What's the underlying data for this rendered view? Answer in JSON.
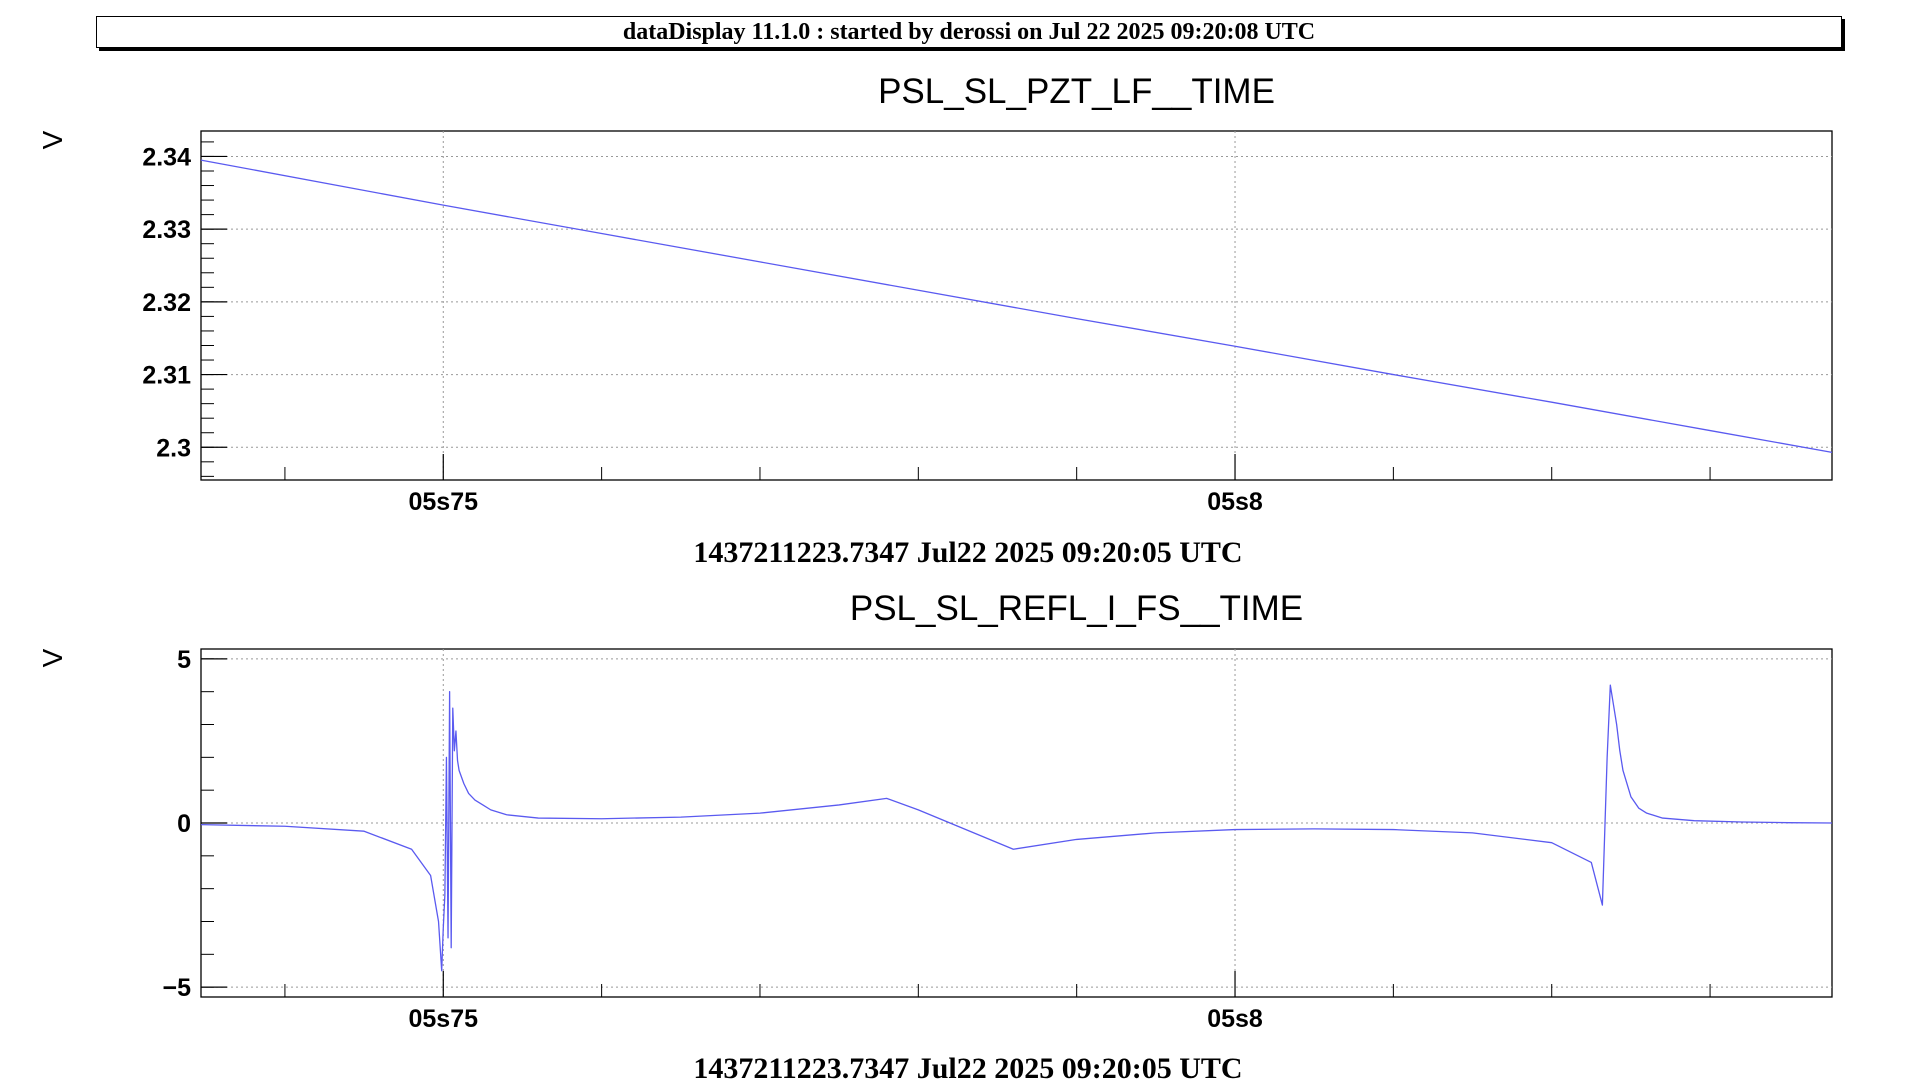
{
  "header": {
    "title": "dataDisplay 11.1.0 : started by derossi on Jul 22 2025 09:20:08 UTC"
  },
  "style": {
    "trace_color": "#5a5af0",
    "grid_color": "#999999",
    "axis_color": "#000000"
  },
  "chart_data": [
    {
      "type": "line",
      "title": "PSL_SL_PZT_LF__TIME",
      "ylabel": "V",
      "xlabel": "1437211223.7347 Jul22 2025 09:20:05 UTC",
      "xlim": [
        0.7347,
        0.8377
      ],
      "ylim": [
        2.2955,
        2.3435
      ],
      "grid": true,
      "ytick_values": [
        2.3,
        2.31,
        2.32,
        2.33,
        2.34
      ],
      "yticks": [
        "2.3",
        "2.31",
        "2.32",
        "2.33",
        "2.34"
      ],
      "xtick_values": [
        0.75,
        0.8
      ],
      "xticks": [
        "05s75",
        "05s8"
      ],
      "series": [
        {
          "x": [
            0.7347,
            0.75,
            0.76,
            0.77,
            0.78,
            0.79,
            0.8,
            0.81,
            0.82,
            0.83,
            0.8377
          ],
          "values": [
            2.3395,
            2.3333,
            2.3294,
            2.3255,
            2.3216,
            2.3177,
            2.3139,
            2.31,
            2.3062,
            2.3023,
            2.2993
          ]
        }
      ]
    },
    {
      "type": "line",
      "title": "PSL_SL_REFL_I_FS__TIME",
      "ylabel": "V",
      "xlabel": "1437211223.7347 Jul22 2025 09:20:05 UTC",
      "xlim": [
        0.7347,
        0.8377
      ],
      "ylim": [
        -5.3,
        5.3
      ],
      "grid": true,
      "ytick_values": [
        -5,
        0,
        5
      ],
      "yticks": [
        "−5",
        "0",
        "5"
      ],
      "xtick_values": [
        0.75,
        0.8
      ],
      "xticks": [
        "05s75",
        "05s8"
      ],
      "series": [
        {
          "x": [
            0.7347,
            0.74,
            0.745,
            0.748,
            0.7492,
            0.7497,
            0.7499,
            0.75,
            0.7501,
            0.7502,
            0.7503,
            0.7504,
            0.7505,
            0.7506,
            0.7507,
            0.7508,
            0.7509,
            0.751,
            0.7513,
            0.7516,
            0.752,
            0.7525,
            0.753,
            0.754,
            0.756,
            0.76,
            0.765,
            0.77,
            0.775,
            0.778,
            0.78,
            0.782,
            0.784,
            0.786,
            0.79,
            0.795,
            0.8,
            0.805,
            0.81,
            0.815,
            0.82,
            0.8225,
            0.8232,
            0.8235,
            0.8237,
            0.8239,
            0.8241,
            0.8243,
            0.8245,
            0.825,
            0.8255,
            0.826,
            0.827,
            0.829,
            0.832,
            0.835,
            0.8377
          ],
          "values": [
            -0.05,
            -0.1,
            -0.25,
            -0.8,
            -1.6,
            -3.0,
            -4.5,
            -3.2,
            -2.2,
            2.0,
            -3.5,
            4.0,
            -3.8,
            3.5,
            2.2,
            2.8,
            1.9,
            1.6,
            1.2,
            0.9,
            0.7,
            0.55,
            0.4,
            0.25,
            0.15,
            0.13,
            0.18,
            0.3,
            0.55,
            0.75,
            0.4,
            0.0,
            -0.4,
            -0.8,
            -0.5,
            -0.3,
            -0.2,
            -0.18,
            -0.2,
            -0.3,
            -0.6,
            -1.2,
            -2.5,
            2.0,
            4.2,
            3.6,
            3.0,
            2.2,
            1.6,
            0.8,
            0.45,
            0.3,
            0.15,
            0.07,
            0.03,
            0.01,
            0.0
          ]
        }
      ]
    }
  ]
}
